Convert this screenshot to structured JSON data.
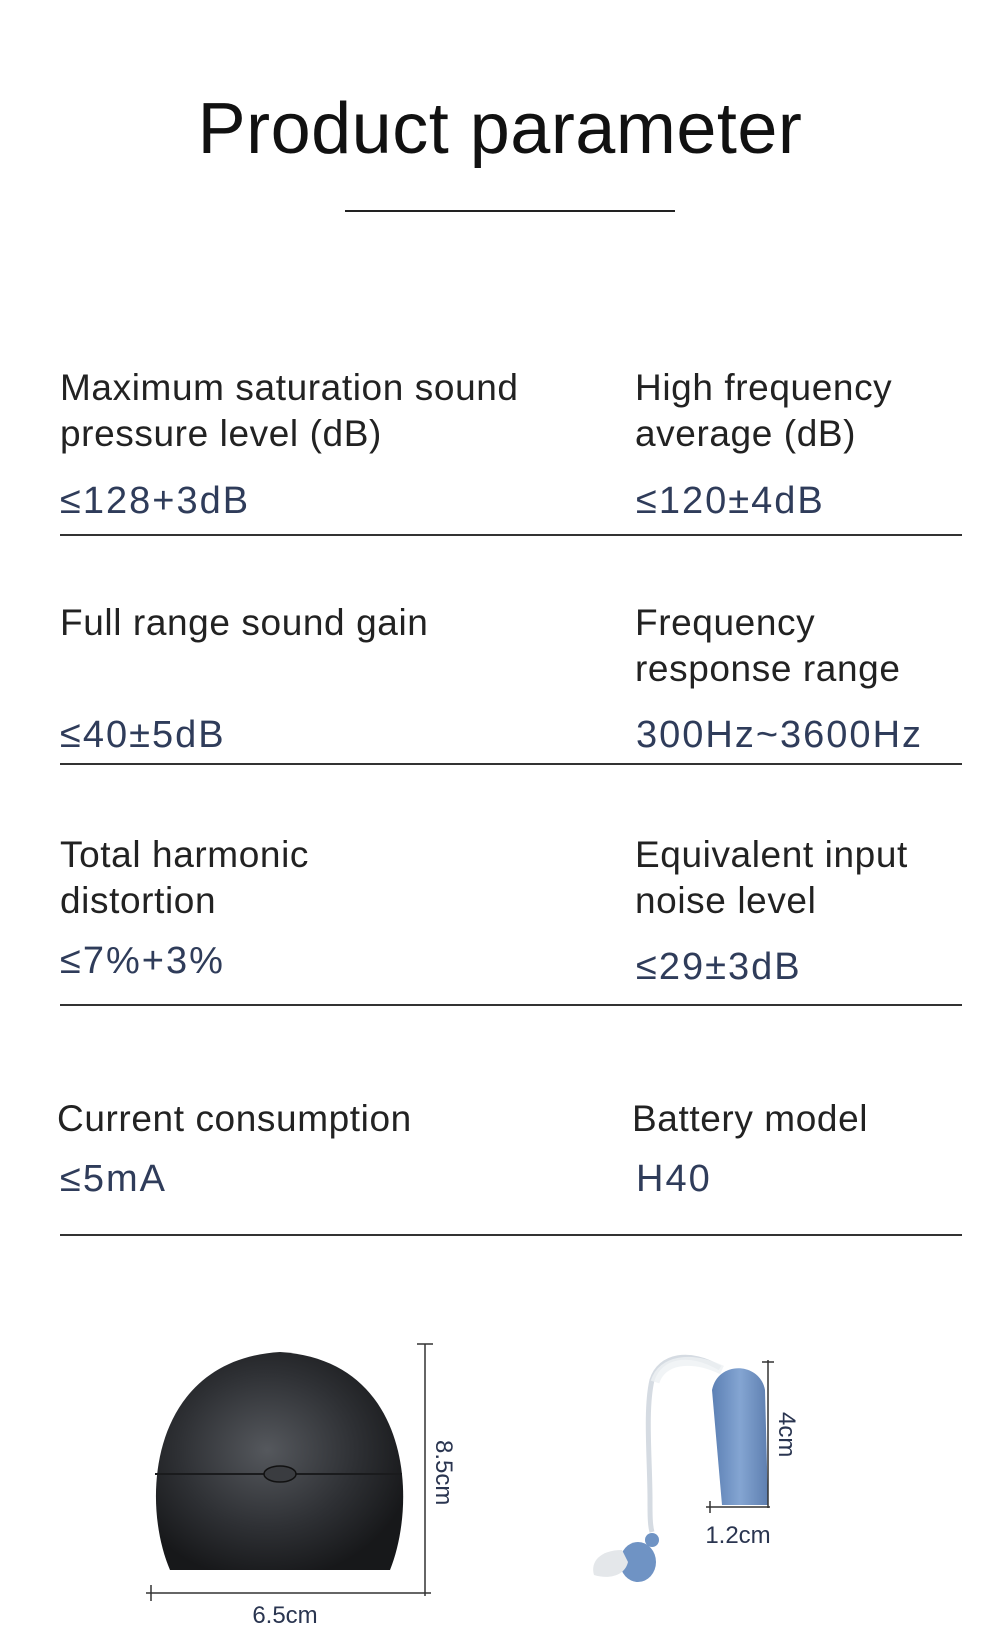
{
  "title": "Product parameter",
  "params": [
    {
      "label": "Maximum saturation sound pressure level (dB)",
      "value": "≤128+3dB"
    },
    {
      "label": "High frequency average (dB)",
      "value": "≤120±4dB"
    },
    {
      "label": "Full range sound gain",
      "value": "≤40±5dB"
    },
    {
      "label": "Frequency response range",
      "value": "300Hz~3600Hz"
    },
    {
      "label": "Total harmonic distortion",
      "value": "≤7%+3%"
    },
    {
      "label": "Equivalent input noise level",
      "value": "≤29±3dB"
    },
    {
      "label": "Current consumption",
      "value": "≤5mA"
    },
    {
      "label": "Battery model",
      "value": "H40"
    }
  ],
  "dimensions": {
    "case_height": "8.5cm",
    "case_width": "6.5cm",
    "aid_height": "4cm",
    "aid_width": "1.2cm"
  },
  "colors": {
    "value_text": "#2f3c5a",
    "case": "#2a2c30",
    "aid_body": "#6f93c4"
  }
}
